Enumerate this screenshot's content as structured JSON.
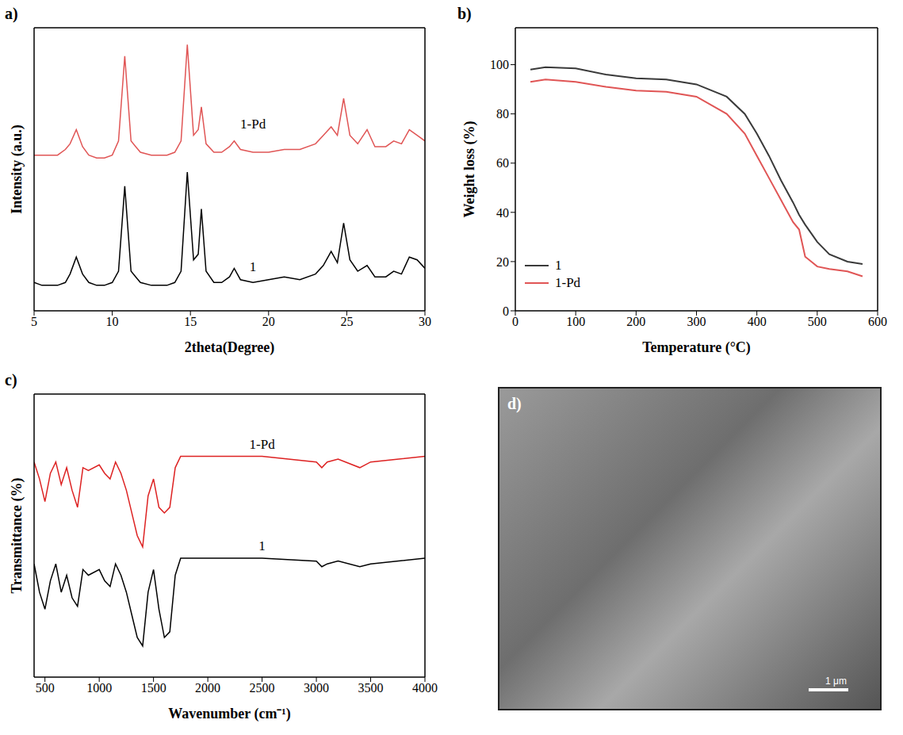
{
  "chart_data": [
    {
      "panel": "a)",
      "type": "line",
      "xlabel": "2theta(Degree)",
      "ylabel": "Intensity (a.u.)",
      "xlim": [
        5,
        30
      ],
      "xticks": [
        5,
        10,
        15,
        20,
        25,
        30
      ],
      "ylim": [
        0,
        100
      ],
      "tick_labels": "x",
      "x": [
        5,
        5.5,
        6,
        6.5,
        7,
        7.3,
        7.7,
        8.1,
        8.5,
        9,
        9.5,
        10,
        10.4,
        10.8,
        11.2,
        11.5,
        11.8,
        12.5,
        13,
        13.5,
        14,
        14.4,
        14.8,
        15.2,
        15.5,
        15.7,
        16,
        16.5,
        17,
        17.5,
        17.8,
        18.2,
        19,
        20,
        21,
        22,
        23,
        23.5,
        24,
        24.4,
        24.8,
        25.2,
        25.7,
        26.3,
        26.8,
        27.5,
        28,
        28.5,
        29,
        29.5,
        30
      ],
      "series": [
        {
          "name": "1",
          "color": "#000000",
          "values": [
            10,
            9,
            9,
            9,
            10,
            13,
            19,
            13,
            10,
            9,
            9,
            10,
            14,
            44,
            14,
            12,
            10,
            9,
            9,
            9,
            10,
            14,
            49,
            18,
            20,
            36,
            14,
            10,
            10,
            12,
            15,
            11,
            10,
            11,
            12,
            11,
            13,
            16,
            21,
            17,
            31,
            18,
            14,
            16,
            12,
            12,
            14,
            13,
            19,
            18,
            15
          ]
        },
        {
          "name": "1-Pd",
          "color": "#e05555",
          "values": [
            55,
            55,
            55,
            55,
            57,
            59,
            64,
            58,
            55,
            54,
            54,
            55,
            60,
            90,
            60,
            58,
            56,
            55,
            55,
            55,
            56,
            60,
            94,
            62,
            64,
            72,
            59,
            56,
            56,
            58,
            60,
            57,
            56,
            56,
            57,
            57,
            59,
            62,
            65,
            62,
            75,
            62,
            59,
            64,
            58,
            58,
            60,
            59,
            64,
            62,
            60
          ]
        }
      ]
    },
    {
      "panel": "b)",
      "type": "line",
      "xlabel": "Temperature (°C)",
      "ylabel": "Weight loss (%)",
      "xlim": [
        0,
        600
      ],
      "xticks": [
        0,
        100,
        200,
        300,
        400,
        500,
        600
      ],
      "ylim": [
        0,
        115
      ],
      "yticks": [
        0,
        20,
        40,
        60,
        80,
        100
      ],
      "legend": "lower left",
      "x": [
        25,
        50,
        100,
        150,
        200,
        250,
        300,
        350,
        380,
        400,
        420,
        440,
        460,
        470,
        480,
        500,
        520,
        550,
        575
      ],
      "series": [
        {
          "name": "1",
          "color": "#3a3a3a",
          "values": [
            98,
            99,
            98.5,
            96,
            94.5,
            94,
            92,
            87,
            80,
            72,
            63,
            53,
            44,
            39,
            35,
            28,
            23,
            20,
            19
          ]
        },
        {
          "name": "1-Pd",
          "color": "#e05555",
          "values": [
            93,
            94,
            93,
            91,
            89.5,
            89,
            87,
            80,
            72,
            63,
            54,
            45,
            36,
            33,
            22,
            18,
            17,
            16,
            14
          ]
        }
      ]
    },
    {
      "panel": "c)",
      "type": "line",
      "xlabel": "Wavenumber (cm⁻¹)",
      "ylabel": "Transmittance (%)",
      "xlim": [
        400,
        4000
      ],
      "xticks": [
        500,
        1000,
        1500,
        2000,
        2500,
        3000,
        3500,
        4000
      ],
      "ylim": [
        0,
        100
      ],
      "tick_labels": "x",
      "x": [
        400,
        450,
        500,
        550,
        600,
        650,
        700,
        750,
        800,
        850,
        900,
        1000,
        1050,
        1100,
        1150,
        1200,
        1250,
        1300,
        1350,
        1400,
        1450,
        1500,
        1550,
        1600,
        1650,
        1700,
        1750,
        1800,
        2000,
        2500,
        3000,
        3050,
        3100,
        3200,
        3400,
        3500,
        4000
      ],
      "series": [
        {
          "name": "1",
          "color": "#000000",
          "values": [
            40,
            30,
            24,
            34,
            40,
            30,
            36,
            28,
            25,
            38,
            36,
            38,
            34,
            32,
            40,
            36,
            30,
            22,
            14,
            11,
            30,
            38,
            24,
            14,
            16,
            36,
            42,
            42,
            42,
            42,
            41,
            39,
            40,
            41,
            39,
            40,
            42
          ]
        },
        {
          "name": "1-Pd",
          "color": "#dd2222",
          "values": [
            76,
            70,
            62,
            72,
            76,
            68,
            74,
            66,
            60,
            74,
            73,
            75,
            72,
            70,
            76,
            72,
            66,
            58,
            50,
            46,
            64,
            70,
            60,
            58,
            60,
            74,
            78,
            78,
            78,
            78,
            76,
            74,
            76,
            77,
            74,
            76,
            78
          ]
        }
      ]
    }
  ],
  "image": {
    "panel": "d)",
    "scale_bar": "1 μm"
  }
}
